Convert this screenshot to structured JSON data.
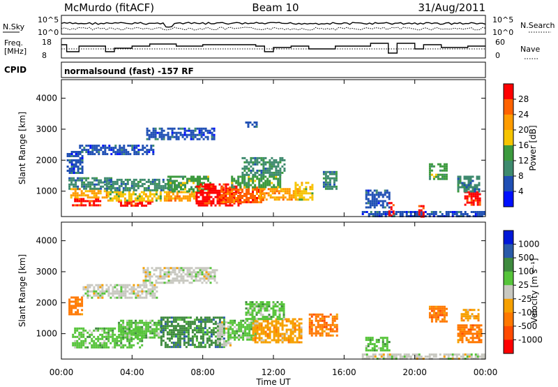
{
  "header": {
    "station": "McMurdo (fitACF)",
    "beam": "Beam 10",
    "date": "31/Aug/2011"
  },
  "status_panel": {
    "left_label": "N.Sky",
    "right_label": "N.Search",
    "y_ticks": [
      "10^5",
      "10^0"
    ]
  },
  "freq_panel": {
    "left_label_1": "Freq.",
    "left_label_2": "[MHz]",
    "left_ticks": [
      "18",
      "8"
    ],
    "right_label": "Nave",
    "right_ticks": [
      "60",
      "0"
    ]
  },
  "cpid": {
    "label": "CPID",
    "text": "normalsound (fast) -157 RF"
  },
  "chart_data": [
    {
      "type": "heatmap",
      "name": "power",
      "xlabel": "Time UT",
      "ylabel": "Slant Range [km]",
      "x_ticks": [
        "00:00",
        "04:00",
        "08:00",
        "12:00",
        "16:00",
        "20:00",
        "00:00"
      ],
      "x_range_hours": [
        0,
        24
      ],
      "y_ticks": [
        1000,
        2000,
        3000,
        4000
      ],
      "y_range_km": [
        180,
        4600
      ],
      "colorbar": {
        "label": "Power [dB]",
        "ticks": [
          "4",
          "8",
          "12",
          "16",
          "20",
          "24",
          "28"
        ],
        "colors": [
          "#0010ff",
          "#1f4fb4",
          "#3e8a6e",
          "#3c9a3e",
          "#f6c400",
          "#ff9c00",
          "#ff6200",
          "#ff0000"
        ],
        "colors_low_to_high": true
      },
      "regions": [
        {
          "t": [
            0.6,
            2.2
          ],
          "r": [
            560,
            780
          ],
          "level": 7
        },
        {
          "t": [
            0.5,
            2.6
          ],
          "r": [
            780,
            1100
          ],
          "level": 5
        },
        {
          "t": [
            0.4,
            2.8
          ],
          "r": [
            1100,
            1450
          ],
          "level": 2
        },
        {
          "t": [
            3.2,
            5.2
          ],
          "r": [
            500,
            700
          ],
          "level": 7
        },
        {
          "t": [
            2.6,
            5.6
          ],
          "r": [
            700,
            1000
          ],
          "level": 4
        },
        {
          "t": [
            2.4,
            6.2
          ],
          "r": [
            1000,
            1400
          ],
          "level": 2
        },
        {
          "t": [
            5.8,
            7.6
          ],
          "r": [
            700,
            1000
          ],
          "level": 5
        },
        {
          "t": [
            6.0,
            8.4
          ],
          "r": [
            1000,
            1500
          ],
          "level": 3
        },
        {
          "t": [
            7.6,
            10.2
          ],
          "r": [
            550,
            1250
          ],
          "level": 7
        },
        {
          "t": [
            9.0,
            11.4
          ],
          "r": [
            650,
            1150
          ],
          "level": 6
        },
        {
          "t": [
            9.6,
            12.4
          ],
          "r": [
            1150,
            1500
          ],
          "level": 3
        },
        {
          "t": [
            11.2,
            13.4
          ],
          "r": [
            750,
            1100
          ],
          "level": 5
        },
        {
          "t": [
            13.2,
            14.2
          ],
          "r": [
            750,
            1300
          ],
          "level": 4
        },
        {
          "t": [
            14.8,
            15.6
          ],
          "r": [
            1100,
            1650
          ],
          "level": 2
        },
        {
          "t": [
            17.2,
            18.6
          ],
          "r": [
            500,
            1050
          ],
          "level": 1
        },
        {
          "t": [
            20.8,
            21.8
          ],
          "r": [
            1400,
            1900
          ],
          "level": 3
        },
        {
          "t": [
            22.8,
            23.7
          ],
          "r": [
            550,
            1000
          ],
          "level": 7
        },
        {
          "t": [
            22.4,
            23.6
          ],
          "r": [
            1000,
            1500
          ],
          "level": 2
        },
        {
          "t": [
            0.3,
            1.2
          ],
          "r": [
            1600,
            2300
          ],
          "level": 1
        },
        {
          "t": [
            1.0,
            5.2
          ],
          "r": [
            2200,
            2500
          ],
          "level": 1
        },
        {
          "t": [
            4.8,
            8.6
          ],
          "r": [
            2700,
            3050
          ],
          "level": 1
        },
        {
          "t": [
            10.2,
            12.6
          ],
          "r": [
            1500,
            2100
          ],
          "level": 2
        },
        {
          "t": [
            10.4,
            11.0
          ],
          "r": [
            3050,
            3250
          ],
          "level": 1
        },
        {
          "t": [
            17.0,
            23.9
          ],
          "r": [
            200,
            360
          ],
          "level": 1
        },
        {
          "t": [
            18.5,
            18.8
          ],
          "r": [
            200,
            650
          ],
          "level": 7
        },
        {
          "t": [
            20.2,
            20.5
          ],
          "r": [
            200,
            550
          ],
          "level": 7
        }
      ]
    },
    {
      "type": "heatmap",
      "name": "velocity",
      "xlabel": "Time UT",
      "ylabel": "Slant Range [km]",
      "x_ticks": [
        "00:00",
        "04:00",
        "08:00",
        "12:00",
        "16:00",
        "20:00",
        "00:00"
      ],
      "x_range_hours": [
        0,
        24
      ],
      "y_ticks": [
        1000,
        2000,
        3000,
        4000
      ],
      "y_range_km": [
        180,
        4600
      ],
      "colorbar": {
        "label": "Velocity [m s⁻¹]",
        "ticks": [
          "1000",
          "500",
          "100",
          "25",
          "-25",
          "-100",
          "-500",
          "-1000"
        ],
        "colors": [
          "#0018d8",
          "#2a5aa8",
          "#3e8a3e",
          "#56c43a",
          "#c8c8c0",
          "#f6a000",
          "#ff7800",
          "#ff4a00",
          "#ff0000"
        ],
        "colors_low_to_high": false
      },
      "regions": [
        {
          "t": [
            0.6,
            4.6
          ],
          "r": [
            550,
            1200
          ],
          "level": 3
        },
        {
          "t": [
            3.2,
            5.6
          ],
          "r": [
            900,
            1450
          ],
          "level": 3
        },
        {
          "t": [
            5.6,
            9.2
          ],
          "r": [
            550,
            1550
          ],
          "level": 2
        },
        {
          "t": [
            8.8,
            9.6
          ],
          "r": [
            650,
            1400
          ],
          "level": 4
        },
        {
          "t": [
            9.4,
            11.0
          ],
          "r": [
            800,
            1450
          ],
          "level": 3
        },
        {
          "t": [
            10.8,
            13.6
          ],
          "r": [
            750,
            1500
          ],
          "level": 5
        },
        {
          "t": [
            14.0,
            15.6
          ],
          "r": [
            950,
            1650
          ],
          "level": 6
        },
        {
          "t": [
            10.4,
            12.6
          ],
          "r": [
            1500,
            2050
          ],
          "level": 3
        },
        {
          "t": [
            0.4,
            1.2
          ],
          "r": [
            1600,
            2200
          ],
          "level": 6
        },
        {
          "t": [
            1.2,
            5.4
          ],
          "r": [
            2150,
            2600
          ],
          "level": 4
        },
        {
          "t": [
            4.6,
            8.8
          ],
          "r": [
            2650,
            3150
          ],
          "level": 4
        },
        {
          "t": [
            22.4,
            23.8
          ],
          "r": [
            700,
            1300
          ],
          "level": 6
        },
        {
          "t": [
            22.6,
            23.6
          ],
          "r": [
            1400,
            1800
          ],
          "level": 5
        },
        {
          "t": [
            20.8,
            21.8
          ],
          "r": [
            1400,
            1900
          ],
          "level": 6
        },
        {
          "t": [
            17.2,
            18.6
          ],
          "r": [
            450,
            900
          ],
          "level": 3
        },
        {
          "t": [
            17.0,
            23.9
          ],
          "r": [
            200,
            360
          ],
          "level": 4
        }
      ]
    }
  ]
}
